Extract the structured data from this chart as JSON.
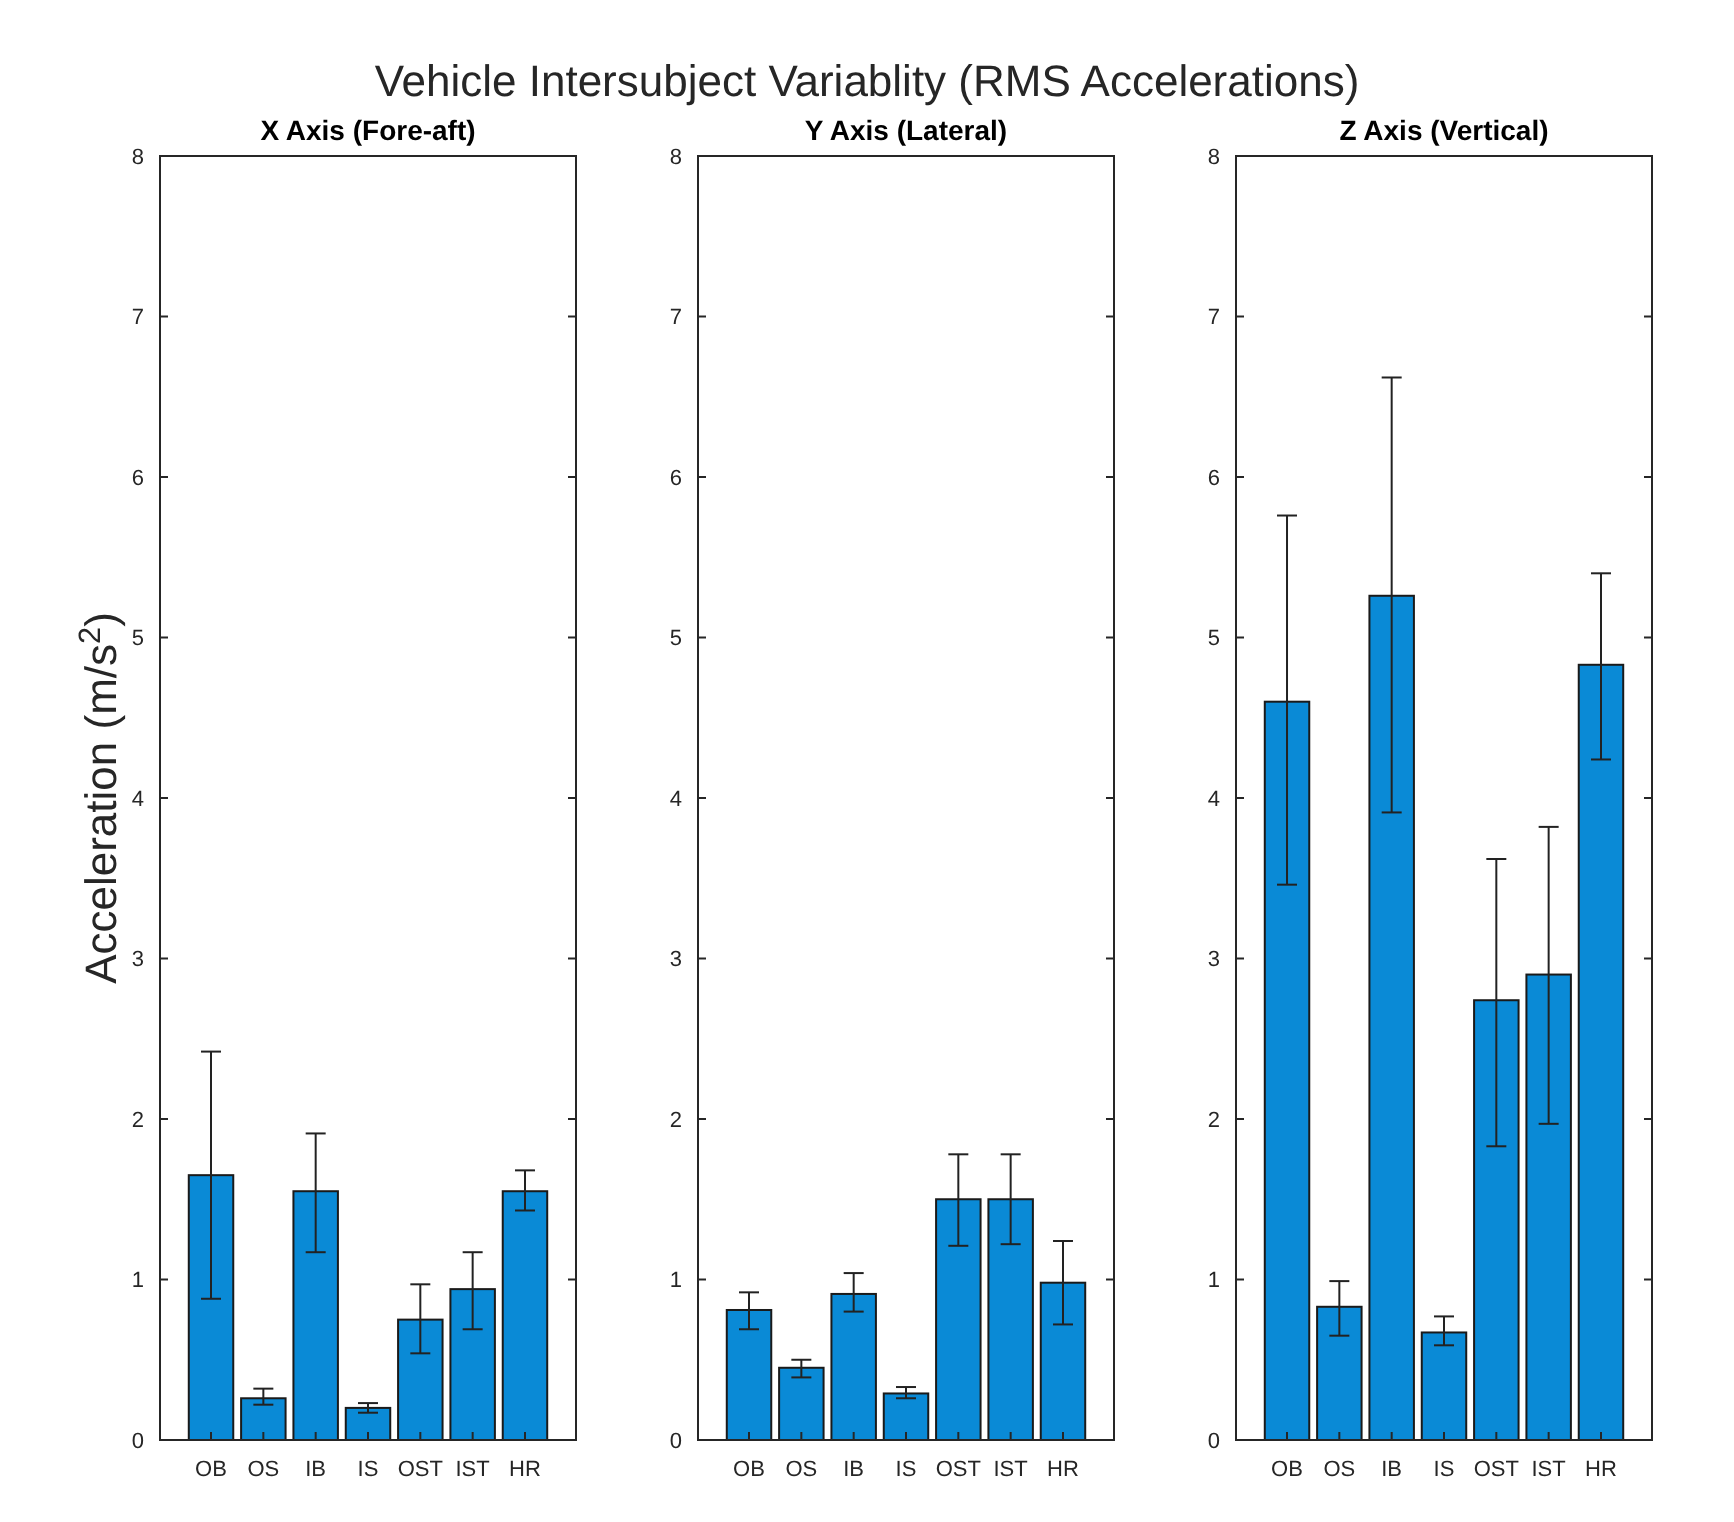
{
  "chart_data": [
    {
      "type": "bar",
      "title": "Vehicle Intersubject Variablity (RMS Accelerations)",
      "subtitle": "X Axis (Fore-aft)",
      "ylabel": "Acceleration (m/s$^{2}$)",
      "categories": [
        "OB",
        "OS",
        "IB",
        "IS",
        "OST",
        "IST",
        "HR"
      ],
      "values": [
        1.65,
        0.26,
        1.55,
        0.2,
        0.75,
        0.94,
        1.55
      ],
      "errors": [
        [
          0.88,
          2.42
        ],
        [
          0.22,
          0.32
        ],
        [
          1.17,
          1.91
        ],
        [
          0.17,
          0.23
        ],
        [
          0.54,
          0.97
        ],
        [
          0.69,
          1.17
        ],
        [
          1.43,
          1.68
        ]
      ],
      "color": "#0a8ad6",
      "ylim": [
        0,
        8
      ],
      "yticks": [
        0,
        1,
        2,
        3,
        4,
        5,
        6,
        7,
        8
      ],
      "grid": false
    },
    {
      "type": "bar",
      "title": "Y Axis (Lateral)",
      "categories": [
        "OB",
        "OS",
        "IB",
        "IS",
        "OST",
        "IST",
        "HR"
      ],
      "values": [
        0.81,
        0.45,
        0.91,
        0.29,
        1.5,
        1.5,
        0.98
      ],
      "errors": [
        [
          0.69,
          0.92
        ],
        [
          0.39,
          0.5
        ],
        [
          0.8,
          1.04
        ],
        [
          0.26,
          0.33
        ],
        [
          1.21,
          1.78
        ],
        [
          1.22,
          1.78
        ],
        [
          0.72,
          1.24
        ]
      ],
      "color": "#0a8ad6",
      "ylim": [
        0,
        8
      ],
      "yticks": [
        0,
        1,
        2,
        3,
        4,
        5,
        6,
        7,
        8
      ],
      "grid": false
    },
    {
      "type": "bar",
      "title": "Z Axis (Vertical)",
      "categories": [
        "OB",
        "OS",
        "IB",
        "IS",
        "OST",
        "IST",
        "HR"
      ],
      "values": [
        4.6,
        0.83,
        5.26,
        0.67,
        2.74,
        2.9,
        4.83
      ],
      "errors": [
        [
          3.46,
          5.76
        ],
        [
          0.65,
          0.99
        ],
        [
          3.91,
          6.62
        ],
        [
          0.59,
          0.77
        ],
        [
          1.83,
          3.62
        ],
        [
          1.97,
          3.82
        ],
        [
          4.24,
          5.4
        ]
      ],
      "color": "#0a8ad6",
      "ylim": [
        0,
        8
      ],
      "yticks": [
        0,
        1,
        2,
        3,
        4,
        5,
        6,
        7,
        8
      ],
      "grid": false
    }
  ]
}
